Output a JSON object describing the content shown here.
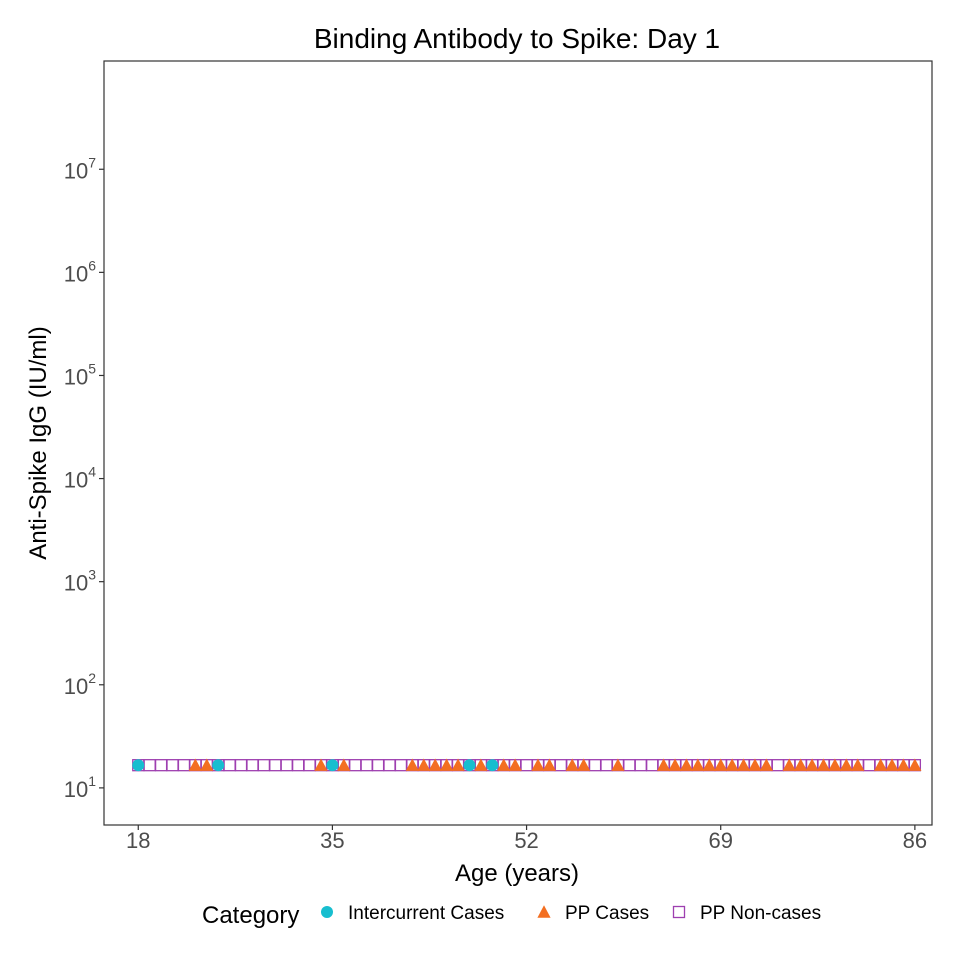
{
  "chart_data": {
    "type": "scatter",
    "title": "Binding Antibody to Spike: Day 1",
    "xlabel": "Age (years)",
    "ylabel": "Anti-Spike IgG (IU/ml)",
    "x_ticks": [
      18,
      35,
      52,
      69,
      86
    ],
    "xlim": [
      15,
      87.5
    ],
    "ylim_log10": [
      0.64,
      8.05
    ],
    "y_log_scale": true,
    "y_ticks": [
      {
        "base": "10",
        "exp": "1",
        "value": 10
      },
      {
        "base": "10",
        "exp": "2",
        "value": 100
      },
      {
        "base": "10",
        "exp": "3",
        "value": 1000
      },
      {
        "base": "10",
        "exp": "4",
        "value": 10000
      },
      {
        "base": "10",
        "exp": "5",
        "value": 100000
      },
      {
        "base": "10",
        "exp": "6",
        "value": 1000000
      },
      {
        "base": "10",
        "exp": "7",
        "value": 10000000
      }
    ],
    "grid": false,
    "legend_position": "bottom",
    "legend_title": "Category",
    "series": [
      {
        "name": "Intercurrent Cases",
        "marker": "circle",
        "color": "#17becf",
        "y": 16.6,
        "x": [
          18,
          25,
          35,
          47,
          49
        ]
      },
      {
        "name": "PP Cases",
        "marker": "triangle",
        "color": "#f36f21",
        "y": 16.6,
        "x": [
          23,
          24,
          34,
          36,
          42,
          43,
          44,
          45,
          46,
          48,
          50,
          51,
          53,
          54,
          56,
          57,
          60,
          64,
          65,
          66,
          67,
          68,
          69,
          70,
          71,
          72,
          73,
          75,
          76,
          77,
          78,
          79,
          80,
          81,
          83,
          84,
          85,
          86
        ]
      },
      {
        "name": "PP Non-cases",
        "marker": "square-open",
        "color": "#9e3fb0",
        "y": 16.6,
        "x": [
          18,
          19,
          20,
          21,
          22,
          23,
          24,
          25,
          26,
          27,
          28,
          29,
          30,
          31,
          32,
          33,
          34,
          35,
          36,
          37,
          38,
          39,
          40,
          41,
          42,
          43,
          44,
          45,
          46,
          47,
          48,
          49,
          50,
          51,
          52,
          53,
          54,
          55,
          56,
          57,
          58,
          59,
          60,
          61,
          62,
          63,
          64,
          65,
          66,
          67,
          68,
          69,
          70,
          71,
          72,
          73,
          74,
          75,
          76,
          77,
          78,
          79,
          80,
          81,
          82,
          83,
          84,
          85,
          86
        ]
      }
    ]
  }
}
